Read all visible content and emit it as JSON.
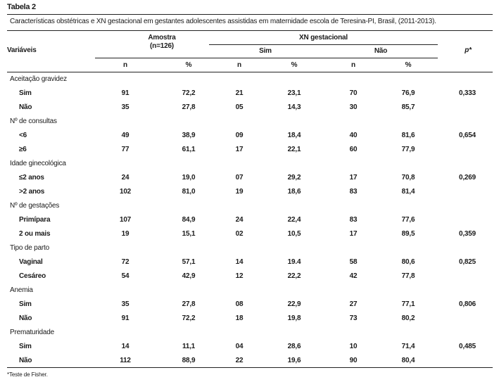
{
  "table_label": "Tabela 2",
  "caption": "Características obstétricas e XN gestacional em gestantes adolescentes assistidas em maternidade escola de Teresina-PI, Brasil, (2011-2013).",
  "headers": {
    "variables": "Variáveis",
    "sample": "Amostra",
    "sample_n": "(n=126)",
    "xn": "XN gestacional",
    "yes": "Sim",
    "no": "Não",
    "p": "p*",
    "sub": [
      "n",
      "%",
      "n",
      "%",
      "n",
      "%"
    ]
  },
  "rows": [
    {
      "group": "Aceitação gravidez"
    },
    {
      "label": "Sim",
      "values": [
        "91",
        "72,2",
        "21",
        "23,1",
        "70",
        "76,9"
      ],
      "p": "0,333"
    },
    {
      "label": "Não",
      "values": [
        "35",
        "27,8",
        "05",
        "14,3",
        "30",
        "85,7"
      ],
      "p": ""
    },
    {
      "group": "Nº de consultas"
    },
    {
      "label": "<6",
      "values": [
        "49",
        "38,9",
        "09",
        "18,4",
        "40",
        "81,6"
      ],
      "p": "0,654"
    },
    {
      "label": "≥6",
      "values": [
        "77",
        "61,1",
        "17",
        "22,1",
        "60",
        "77,9"
      ],
      "p": ""
    },
    {
      "group": "Idade ginecológica"
    },
    {
      "label": "≤2 anos",
      "values": [
        "24",
        "19,0",
        "07",
        "29,2",
        "17",
        "70,8"
      ],
      "p": "0,269"
    },
    {
      "label": ">2 anos",
      "values": [
        "102",
        "81,0",
        "19",
        "18,6",
        "83",
        "81,4"
      ],
      "p": ""
    },
    {
      "group": "Nº de gestações"
    },
    {
      "label": "Primípara",
      "values": [
        "107",
        "84,9",
        "24",
        "22,4",
        "83",
        "77,6"
      ],
      "p": ""
    },
    {
      "label": "2 ou mais",
      "values": [
        "19",
        "15,1",
        "02",
        "10,5",
        "17",
        "89,5"
      ],
      "p": "0,359"
    },
    {
      "group": "Tipo de parto"
    },
    {
      "label": "Vaginal",
      "values": [
        "72",
        "57,1",
        "14",
        "19.4",
        "58",
        "80,6"
      ],
      "p": "0,825"
    },
    {
      "label": "Cesáreo",
      "values": [
        "54",
        "42,9",
        "12",
        "22,2",
        "42",
        "77,8"
      ],
      "p": ""
    },
    {
      "group": "Anemia"
    },
    {
      "label": "Sim",
      "values": [
        "35",
        "27,8",
        "08",
        "22,9",
        "27",
        "77,1"
      ],
      "p": "0,806"
    },
    {
      "label": "Não",
      "values": [
        "91",
        "72,2",
        "18",
        "19,8",
        "73",
        "80,2"
      ],
      "p": ""
    },
    {
      "group": "Prematuridade"
    },
    {
      "label": "Sim",
      "values": [
        "14",
        "11,1",
        "04",
        "28,6",
        "10",
        "71,4"
      ],
      "p": "0,485"
    },
    {
      "label": "Não",
      "values": [
        "112",
        "88,9",
        "22",
        "19,6",
        "90",
        "80,4"
      ],
      "p": ""
    }
  ],
  "footnote": "*Teste de Fisher."
}
